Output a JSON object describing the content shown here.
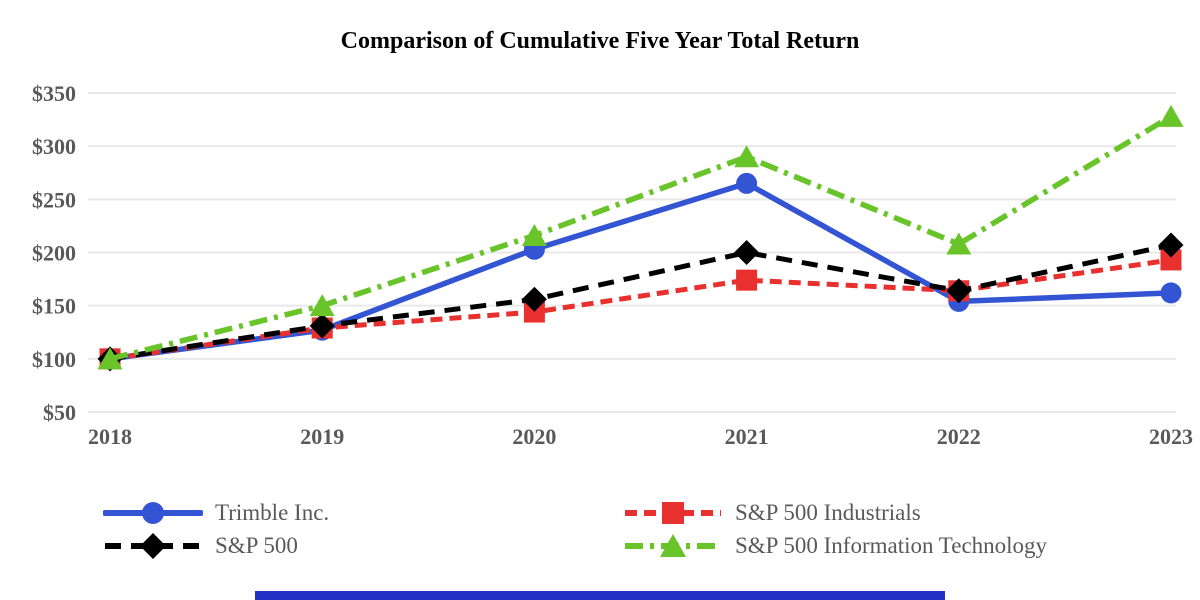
{
  "title": "Comparison of Cumulative Five Year Total Return",
  "colors": {
    "trimble_blue": "#3355D4",
    "sp500_black": "#000000",
    "industrials_red": "#E8312E",
    "infotech_green": "#69C42A",
    "axis_text": "#595959",
    "gridline": "#E8E8E8",
    "bottom_bar": "#2232C6"
  },
  "chart_data": {
    "type": "line",
    "title": "Comparison of Cumulative Five Year Total Return",
    "categories": [
      "2018",
      "2019",
      "2020",
      "2021",
      "2022",
      "2023"
    ],
    "y_tick_values": [
      350,
      300,
      250,
      200,
      150,
      100,
      50
    ],
    "y_tick_labels": [
      "$350",
      "$300",
      "$250",
      "$200",
      "$150",
      "$100",
      "$50"
    ],
    "ylim": [
      50,
      350
    ],
    "grid": true,
    "legend_position": "bottom",
    "series": [
      {
        "name": "Trimble Inc.",
        "color": "#3355D4",
        "marker": "circle",
        "line_style": "solid",
        "values": [
          100,
          127,
          203,
          265,
          154,
          162
        ]
      },
      {
        "name": "S&P 500",
        "color": "#000000",
        "marker": "diamond",
        "line_style": "dashed",
        "values": [
          100,
          131,
          156,
          200,
          164,
          207
        ]
      },
      {
        "name": "S&P 500 Industrials",
        "color": "#E8312E",
        "marker": "square",
        "line_style": "dashed",
        "values": [
          100,
          129,
          144,
          174,
          164,
          193
        ]
      },
      {
        "name": "S&P 500 Information Technology",
        "color": "#69C42A",
        "marker": "triangle",
        "line_style": "dash-dot",
        "values": [
          100,
          150,
          216,
          290,
          208,
          328
        ]
      }
    ]
  }
}
